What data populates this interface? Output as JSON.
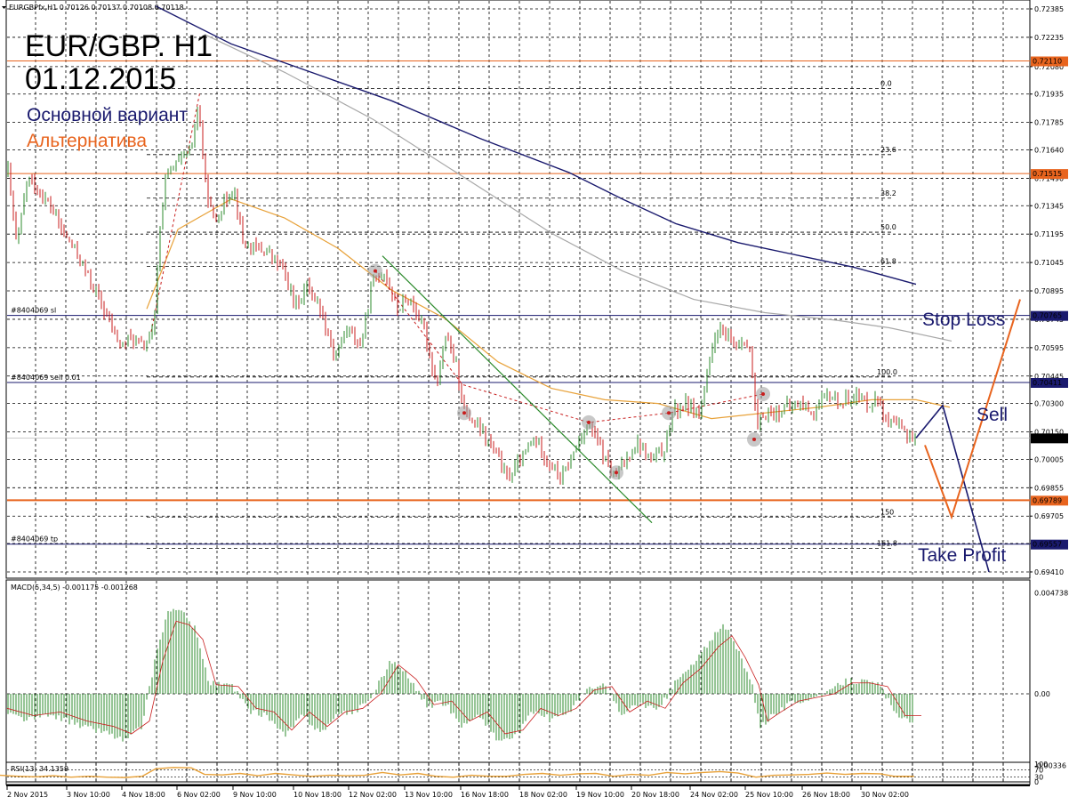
{
  "header": {
    "symbol_line": "EURGBPfx,H1  0.70126 0.70137 0.70108 0.70118",
    "title": "EUR/GBP. H1",
    "date": "01.12.2015",
    "legend_main": "Основной вариант",
    "legend_alt": "Альтернатива"
  },
  "colors": {
    "bull": "#2e8b2e",
    "bear": "#c81e1e",
    "ma_orange": "#e8a23a",
    "ma_navy": "#1a1a6e",
    "ma_gray": "#a8a8a8",
    "level_orange": "#e8641e",
    "main_scenario": "#1a1a6e",
    "alt_scenario": "#e8641e",
    "rsi": "#e8a23a"
  },
  "labels": {
    "stop_loss": "Stop Loss",
    "sell": "Sell",
    "take_profit": "Take Profit"
  },
  "chart_data": {
    "type": "candlestick",
    "price_ticks": [
      "0.72385",
      "0.72235",
      "0.72080",
      "0.71935",
      "0.71785",
      "0.71640",
      "0.71490",
      "0.71345",
      "0.71195",
      "0.71045",
      "0.70895",
      "0.70745",
      "0.70595",
      "0.70445",
      "0.70300",
      "0.70150",
      "0.70005",
      "0.69855",
      "0.69705",
      "0.69560",
      "0.69410"
    ],
    "price_range": [
      0.69377,
      0.72432
    ],
    "highlighted_levels": [
      {
        "label": "0.72110",
        "price": 0.7211,
        "color": "#e8641e"
      },
      {
        "label": "0.71515",
        "price": 0.71515,
        "color": "#e8641e"
      },
      {
        "label": "0.70765",
        "price": 0.70765,
        "color": "#1a1a6e"
      },
      {
        "label": "0.70411",
        "price": 0.70411,
        "color": "#1a1a6e"
      },
      {
        "label": "0.70118",
        "price": 0.70118,
        "color": "#000000"
      },
      {
        "label": "0.69789",
        "price": 0.69789,
        "color": "#e8641e"
      },
      {
        "label": "0.69557",
        "price": 0.69557,
        "color": "#1a1a6e"
      }
    ],
    "order_lines": [
      {
        "text": "#8404069 sl",
        "price": 0.70765
      },
      {
        "text": "#8404069 sell 0.01",
        "price": 0.70411
      },
      {
        "text": "#8404069 tp",
        "price": 0.69557
      }
    ],
    "fib_levels": [
      {
        "label": "0.0",
        "price": 0.71965
      },
      {
        "label": "23.6",
        "price": 0.71615
      },
      {
        "label": "38.2",
        "price": 0.71385
      },
      {
        "label": "50.0",
        "price": 0.71205
      },
      {
        "label": "61.8",
        "price": 0.71025
      },
      {
        "label": "100.0",
        "price": 0.7044
      },
      {
        "label": "150",
        "price": 0.697
      },
      {
        "label": "161.8",
        "price": 0.69535
      }
    ],
    "x_labels": [
      "2 Nov 2015",
      "3 Nov 10:00",
      "4 Nov 18:00",
      "6 Nov 02:00",
      "9 Nov 10:00",
      "10 Nov 18:00",
      "12 Nov 02:00",
      "13 Nov 10:00",
      "16 Nov 18:00",
      "18 Nov 02:00",
      "19 Nov 10:00",
      "20 Nov 18:00",
      "24 Nov 02:00",
      "25 Nov 10:00",
      "26 Nov 18:00",
      "30 Nov 02:00"
    ],
    "close_path": [
      [
        0,
        0.7148
      ],
      [
        8,
        0.7153
      ],
      [
        18,
        0.7112
      ],
      [
        30,
        0.715
      ],
      [
        45,
        0.714
      ],
      [
        55,
        0.7135
      ],
      [
        70,
        0.712
      ],
      [
        85,
        0.711
      ],
      [
        100,
        0.7095
      ],
      [
        115,
        0.708
      ],
      [
        125,
        0.707
      ],
      [
        135,
        0.706
      ],
      [
        145,
        0.7065
      ],
      [
        160,
        0.706
      ],
      [
        172,
        0.7068
      ],
      [
        178,
        0.7118
      ],
      [
        185,
        0.715
      ],
      [
        195,
        0.7155
      ],
      [
        205,
        0.716
      ],
      [
        215,
        0.7165
      ],
      [
        222,
        0.719
      ],
      [
        230,
        0.7145
      ],
      [
        240,
        0.7125
      ],
      [
        250,
        0.7135
      ],
      [
        262,
        0.7145
      ],
      [
        272,
        0.7115
      ],
      [
        285,
        0.7112
      ],
      [
        300,
        0.711
      ],
      [
        318,
        0.71
      ],
      [
        330,
        0.7082
      ],
      [
        345,
        0.7092
      ],
      [
        360,
        0.708
      ],
      [
        375,
        0.7055
      ],
      [
        390,
        0.707
      ],
      [
        405,
        0.706
      ],
      [
        418,
        0.7095
      ],
      [
        432,
        0.71
      ],
      [
        445,
        0.708
      ],
      [
        460,
        0.7085
      ],
      [
        475,
        0.707
      ],
      [
        490,
        0.704
      ],
      [
        500,
        0.7065
      ],
      [
        512,
        0.705
      ],
      [
        522,
        0.7025
      ],
      [
        540,
        0.7015
      ],
      [
        555,
        0.7005
      ],
      [
        570,
        0.699
      ],
      [
        585,
        0.7
      ],
      [
        600,
        0.7012
      ],
      [
        615,
        0.7
      ],
      [
        630,
        0.699
      ],
      [
        645,
        0.7005
      ],
      [
        660,
        0.702
      ],
      [
        675,
        0.7005
      ],
      [
        690,
        0.699
      ],
      [
        700,
        0.6998
      ],
      [
        715,
        0.701
      ],
      [
        730,
        0.7
      ],
      [
        745,
        0.7005
      ],
      [
        755,
        0.7025
      ],
      [
        770,
        0.703
      ],
      [
        785,
        0.7025
      ],
      [
        795,
        0.7045
      ],
      [
        805,
        0.707
      ],
      [
        815,
        0.7065
      ],
      [
        825,
        0.706
      ],
      [
        835,
        0.7065
      ],
      [
        843,
        0.7055
      ],
      [
        850,
        0.7015
      ],
      [
        858,
        0.7025
      ],
      [
        870,
        0.7025
      ],
      [
        885,
        0.7028
      ],
      [
        900,
        0.703
      ],
      [
        915,
        0.7025
      ],
      [
        930,
        0.7035
      ],
      [
        945,
        0.703
      ],
      [
        960,
        0.7035
      ],
      [
        975,
        0.703
      ],
      [
        988,
        0.7033
      ],
      [
        995,
        0.702
      ],
      [
        1010,
        0.7017
      ],
      [
        1025,
        0.7012
      ]
    ],
    "ma_orange": [
      [
        165,
        0.708
      ],
      [
        200,
        0.7122
      ],
      [
        260,
        0.7138
      ],
      [
        320,
        0.7128
      ],
      [
        380,
        0.7112
      ],
      [
        440,
        0.709
      ],
      [
        500,
        0.7075
      ],
      [
        560,
        0.7052
      ],
      [
        620,
        0.7038
      ],
      [
        680,
        0.7032
      ],
      [
        740,
        0.703
      ],
      [
        800,
        0.7022
      ],
      [
        860,
        0.7025
      ],
      [
        920,
        0.7028
      ],
      [
        980,
        0.7032
      ],
      [
        1030,
        0.7032
      ],
      [
        1068,
        0.7028
      ]
    ],
    "ma_navy": [
      [
        175,
        0.724
      ],
      [
        260,
        0.722
      ],
      [
        350,
        0.7205
      ],
      [
        440,
        0.719
      ],
      [
        540,
        0.717
      ],
      [
        640,
        0.7152
      ],
      [
        700,
        0.7138
      ],
      [
        760,
        0.7125
      ],
      [
        830,
        0.7115
      ],
      [
        900,
        0.7108
      ],
      [
        960,
        0.7102
      ],
      [
        1030,
        0.7093
      ]
    ],
    "ma_gray": [
      [
        230,
        0.7225
      ],
      [
        320,
        0.7205
      ],
      [
        420,
        0.718
      ],
      [
        520,
        0.715
      ],
      [
        620,
        0.712
      ],
      [
        700,
        0.71
      ],
      [
        780,
        0.7085
      ],
      [
        860,
        0.7078
      ],
      [
        940,
        0.7074
      ],
      [
        1000,
        0.707
      ],
      [
        1070,
        0.7063
      ]
    ],
    "main_scenario": [
      [
        1030,
        0.70118
      ],
      [
        1060,
        0.7029
      ],
      [
        1112,
        0.6941
      ]
    ],
    "alt_scenario": [
      [
        1040,
        0.7008
      ],
      [
        1070,
        0.697
      ],
      [
        1147,
        0.7085
      ]
    ],
    "macd": {
      "label": "MACD(5,34,5) -0.001175 -0.001268",
      "ticks": [
        "0.004738",
        "0.00",
        "-0.00336"
      ],
      "range": [
        -0.004,
        0.005
      ],
      "points": [
        [
          0,
          -0.0008
        ],
        [
          30,
          -0.0012
        ],
        [
          60,
          -0.001
        ],
        [
          90,
          -0.0015
        ],
        [
          120,
          -0.0018
        ],
        [
          140,
          -0.0022
        ],
        [
          160,
          -0.0015
        ],
        [
          175,
          0.0018
        ],
        [
          190,
          0.004
        ],
        [
          205,
          0.0038
        ],
        [
          220,
          0.003
        ],
        [
          235,
          0.0005
        ],
        [
          260,
          0.0004
        ],
        [
          280,
          -0.0008
        ],
        [
          300,
          -0.001
        ],
        [
          320,
          -0.002
        ],
        [
          340,
          -0.001
        ],
        [
          360,
          -0.0018
        ],
        [
          380,
          -0.001
        ],
        [
          400,
          -0.0008
        ],
        [
          420,
          0.0
        ],
        [
          440,
          0.0016
        ],
        [
          460,
          0.0008
        ],
        [
          480,
          -0.0006
        ],
        [
          500,
          -0.0004
        ],
        [
          520,
          -0.0015
        ],
        [
          540,
          -0.001
        ],
        [
          560,
          -0.0022
        ],
        [
          580,
          -0.002
        ],
        [
          600,
          -0.0008
        ],
        [
          620,
          -0.0012
        ],
        [
          640,
          -0.0008
        ],
        [
          660,
          0.0002
        ],
        [
          680,
          0.0004
        ],
        [
          700,
          -0.001
        ],
        [
          720,
          -0.0004
        ],
        [
          740,
          -0.0008
        ],
        [
          760,
          0.0006
        ],
        [
          780,
          0.0014
        ],
        [
          800,
          0.0026
        ],
        [
          815,
          0.0032
        ],
        [
          830,
          0.002
        ],
        [
          845,
          0.0005
        ],
        [
          855,
          -0.0015
        ],
        [
          870,
          -0.001
        ],
        [
          890,
          -0.0004
        ],
        [
          910,
          -0.0002
        ],
        [
          930,
          0.0
        ],
        [
          950,
          0.0006
        ],
        [
          970,
          0.0006
        ],
        [
          990,
          0.0004
        ],
        [
          1010,
          -0.0012
        ],
        [
          1028,
          -0.0012
        ]
      ]
    },
    "rsi": {
      "label": "RSI(13) 34.1359",
      "ticks": [
        "100",
        "70",
        "30",
        "0"
      ],
      "range": [
        0,
        100
      ],
      "points": [
        [
          0,
          40
        ],
        [
          20,
          35
        ],
        [
          40,
          32
        ],
        [
          60,
          38
        ],
        [
          80,
          30
        ],
        [
          100,
          35
        ],
        [
          120,
          30
        ],
        [
          140,
          28
        ],
        [
          160,
          35
        ],
        [
          175,
          75
        ],
        [
          195,
          82
        ],
        [
          215,
          80
        ],
        [
          230,
          45
        ],
        [
          250,
          42
        ],
        [
          270,
          50
        ],
        [
          290,
          38
        ],
        [
          310,
          50
        ],
        [
          330,
          42
        ],
        [
          350,
          35
        ],
        [
          370,
          40
        ],
        [
          390,
          38
        ],
        [
          410,
          40
        ],
        [
          430,
          55
        ],
        [
          450,
          42
        ],
        [
          470,
          50
        ],
        [
          490,
          35
        ],
        [
          510,
          30
        ],
        [
          530,
          40
        ],
        [
          550,
          35
        ],
        [
          570,
          35
        ],
        [
          590,
          45
        ],
        [
          610,
          50
        ],
        [
          630,
          40
        ],
        [
          650,
          48
        ],
        [
          670,
          50
        ],
        [
          690,
          35
        ],
        [
          710,
          45
        ],
        [
          730,
          40
        ],
        [
          750,
          55
        ],
        [
          770,
          48
        ],
        [
          790,
          55
        ],
        [
          810,
          60
        ],
        [
          830,
          52
        ],
        [
          850,
          30
        ],
        [
          870,
          40
        ],
        [
          890,
          42
        ],
        [
          910,
          45
        ],
        [
          930,
          52
        ],
        [
          950,
          45
        ],
        [
          970,
          50
        ],
        [
          990,
          48
        ],
        [
          1005,
          35
        ],
        [
          1028,
          34
        ]
      ]
    }
  }
}
